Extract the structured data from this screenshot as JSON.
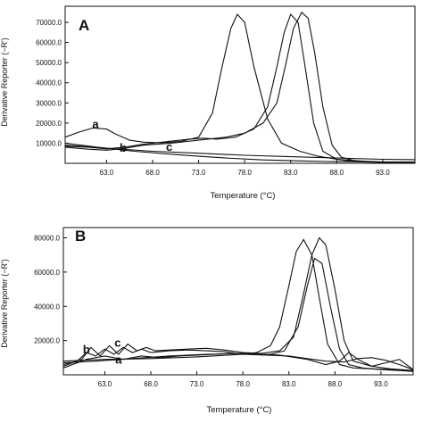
{
  "chart_data": [
    {
      "type": "line",
      "panel_label": "A",
      "xlabel": "Temperature (°C)",
      "ylabel": "Derivative Reporter (−R')",
      "xlim": [
        58.5,
        96.5
      ],
      "ylim": [
        0,
        78000
      ],
      "x_ticks": [
        "63.0",
        "68.0",
        "73.0",
        "78.0",
        "83.0",
        "88.0",
        "93.0"
      ],
      "x_tick_values": [
        63,
        68,
        73,
        78,
        83,
        88,
        93
      ],
      "y_ticks": [
        "10000.0",
        "20000.0",
        "30000.0",
        "40000.0",
        "50000.0",
        "60000.0",
        "70000.0"
      ],
      "y_tick_values": [
        10000,
        20000,
        30000,
        40000,
        50000,
        60000,
        70000
      ],
      "annotations": [
        {
          "text": "a",
          "x": 61.8,
          "y": 17500
        },
        {
          "text": "b",
          "x": 64.8,
          "y": 5800
        },
        {
          "text": "c",
          "x": 69.8,
          "y": 6200
        }
      ],
      "series": [
        {
          "x": [
            58.5,
            60,
            61.5,
            63,
            64,
            65.5,
            67,
            69,
            71,
            73,
            74.5,
            75.5,
            76.5,
            77.2,
            78,
            79,
            80.5,
            82,
            84,
            86,
            88,
            91,
            94,
            96.5
          ],
          "y": [
            13000,
            15500,
            17500,
            17000,
            14500,
            11500,
            10500,
            10200,
            10800,
            13000,
            25000,
            47000,
            67000,
            74000,
            70000,
            48000,
            22000,
            10000,
            6000,
            3500,
            2000,
            1000,
            500,
            300
          ]
        },
        {
          "x": [
            58.5,
            61,
            63,
            65,
            67,
            70,
            72,
            73.5,
            75,
            77,
            79,
            80.5,
            81.5,
            82.3,
            83,
            83.8,
            84.5,
            85.5,
            86.5,
            88,
            90,
            93,
            96.5
          ],
          "y": [
            8500,
            8000,
            7200,
            8000,
            9500,
            11000,
            12000,
            12500,
            12000,
            13000,
            17000,
            28000,
            48000,
            65000,
            74000,
            70000,
            50000,
            20000,
            6000,
            2000,
            800,
            400,
            200
          ]
        },
        {
          "x": [
            58.5,
            61,
            63,
            65,
            67,
            70,
            72,
            74,
            76,
            78,
            80,
            81.5,
            82.5,
            83.3,
            84.2,
            84.9,
            85.6,
            86.5,
            87.5,
            88.5,
            90,
            93,
            96.5
          ],
          "y": [
            8000,
            7000,
            6500,
            7500,
            9000,
            10000,
            11000,
            12000,
            13000,
            15000,
            20000,
            30000,
            50000,
            67000,
            75000,
            72000,
            55000,
            28000,
            9000,
            3000,
            1200,
            500,
            200
          ]
        },
        {
          "x": [
            58.5,
            62,
            66,
            70,
            73,
            76,
            80,
            84,
            87,
            90,
            93,
            96.5
          ],
          "y": [
            10000,
            8000,
            6000,
            4500,
            3500,
            2600,
            1700,
            1200,
            900,
            800,
            700,
            600
          ]
        },
        {
          "x": [
            58.5,
            63,
            68,
            73,
            78,
            83,
            88,
            93,
            96.5
          ],
          "y": [
            9000,
            7500,
            6000,
            5000,
            4000,
            3300,
            2600,
            2000,
            1800
          ]
        }
      ]
    },
    {
      "type": "line",
      "panel_label": "B",
      "xlabel": "Temperature (°C)",
      "ylabel": "Derivative Reporter (−R')",
      "xlim": [
        58.5,
        96.5
      ],
      "ylim": [
        0,
        86000
      ],
      "x_ticks": [
        "63.0",
        "68.0",
        "73.0",
        "78.0",
        "83.0",
        "88.0",
        "93.0"
      ],
      "x_tick_values": [
        63,
        68,
        73,
        78,
        83,
        88,
        93
      ],
      "y_ticks": [
        "20000.0",
        "40000.0",
        "60000.0",
        "80000.0"
      ],
      "y_tick_values": [
        20000,
        40000,
        60000,
        80000
      ],
      "annotations": [
        {
          "text": "b",
          "x": 61.0,
          "y": 12500
        },
        {
          "text": "c",
          "x": 64.4,
          "y": 16500
        },
        {
          "text": "a",
          "x": 64.5,
          "y": 6500
        }
      ],
      "series": [
        {
          "x": [
            58.5,
            60,
            61,
            62,
            63,
            64,
            65,
            66,
            67,
            68,
            70,
            72,
            74,
            76,
            78,
            79.5,
            81,
            82,
            83,
            83.8,
            84.6,
            85.5,
            86.3,
            87.2,
            88.5,
            90,
            92,
            94,
            96.5
          ],
          "y": [
            6000,
            8000,
            13000,
            11000,
            15000,
            12000,
            16000,
            13000,
            15000,
            13000,
            14000,
            14500,
            14000,
            13500,
            12000,
            13000,
            17000,
            28000,
            52000,
            72000,
            79000,
            70000,
            45000,
            18000,
            6000,
            4000,
            3500,
            3000,
            2500
          ]
        },
        {
          "x": [
            58.5,
            60.5,
            61.5,
            62.5,
            63.5,
            64.5,
            65.5,
            66.5,
            67.5,
            68.5,
            70,
            72,
            74,
            76,
            78,
            80,
            82,
            83.5,
            84.5,
            85.5,
            86.3,
            87,
            88,
            89,
            90,
            92,
            94,
            96.5
          ],
          "y": [
            5000,
            9000,
            16000,
            11000,
            17000,
            12000,
            18000,
            14000,
            16000,
            14000,
            14500,
            15000,
            15500,
            14500,
            13000,
            12500,
            14000,
            22000,
            45000,
            70000,
            80000,
            76000,
            50000,
            20000,
            8000,
            5000,
            3500,
            2500
          ]
        },
        {
          "x": [
            58.5,
            61,
            63,
            65,
            67,
            69,
            71,
            73,
            75,
            77,
            79,
            81,
            82.5,
            84,
            85,
            85.8,
            86.6,
            87.5,
            88.5,
            89.5,
            91,
            93,
            95,
            96.5
          ],
          "y": [
            4000,
            9000,
            11000,
            9000,
            11000,
            10000,
            11000,
            11500,
            12000,
            12500,
            12000,
            12000,
            14000,
            28000,
            52000,
            68000,
            65000,
            40000,
            15000,
            6000,
            4000,
            3000,
            2500,
            2000
          ]
        },
        {
          "x": [
            58.5,
            62,
            66,
            70,
            74,
            78,
            82,
            85,
            87,
            88.5,
            89.5,
            90.5,
            92,
            93.5,
            95,
            96.5
          ],
          "y": [
            7000,
            8000,
            9500,
            11000,
            12000,
            12500,
            11500,
            9000,
            6000,
            8000,
            13000,
            9000,
            5000,
            7000,
            9000,
            3000
          ]
        },
        {
          "x": [
            58.5,
            63,
            68,
            73,
            78,
            83,
            87,
            89,
            90.5,
            92,
            93.5,
            95,
            96.5
          ],
          "y": [
            8000,
            9000,
            9500,
            10500,
            12000,
            11000,
            8000,
            7500,
            9500,
            10000,
            8500,
            6000,
            3000
          ]
        }
      ]
    }
  ]
}
